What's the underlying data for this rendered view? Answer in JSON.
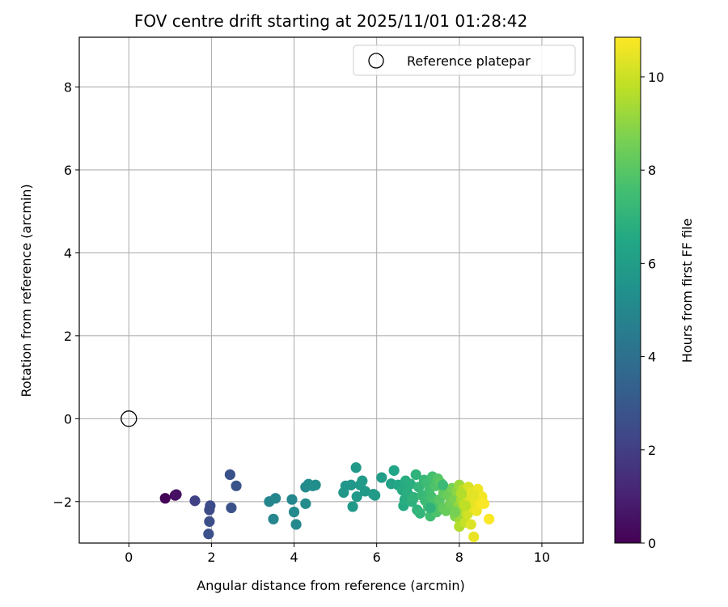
{
  "chart_data": {
    "type": "scatter",
    "title": "FOV centre drift starting at 2025/11/01 01:28:42",
    "xlabel": "Angular distance from reference (arcmin)",
    "ylabel": "Rotation from reference (arcmin)",
    "xlim": [
      -1.2,
      11.0
    ],
    "ylim": [
      -3.0,
      9.2
    ],
    "xticks": [
      0,
      2,
      4,
      6,
      8,
      10
    ],
    "yticks": [
      -2,
      0,
      2,
      4,
      6,
      8
    ],
    "xtick_labels": [
      "0",
      "2",
      "4",
      "6",
      "8",
      "10"
    ],
    "ytick_labels": [
      "−2",
      "0",
      "2",
      "4",
      "6",
      "8"
    ],
    "grid": true,
    "legend": {
      "placement": "top-right",
      "entries": [
        "Reference platepar"
      ]
    },
    "reference_point": {
      "name": "Reference platepar",
      "x": 0,
      "y": 0
    },
    "colorbar": {
      "label": "Hours from first FF file",
      "range": [
        0,
        10.85
      ],
      "ticks": [
        0,
        2,
        4,
        6,
        8,
        10
      ],
      "tick_labels": [
        "0",
        "2",
        "4",
        "6",
        "8",
        "10"
      ],
      "colormap": "viridis"
    },
    "series": [
      {
        "points": [
          {
            "x": 0.88,
            "y": -1.92,
            "h": 0.1
          },
          {
            "x": 1.12,
            "y": -1.85,
            "h": 0.4
          },
          {
            "x": 1.15,
            "y": -1.83,
            "h": 0.5
          },
          {
            "x": 1.6,
            "y": -1.98,
            "h": 2.1
          },
          {
            "x": 1.95,
            "y": -2.2,
            "h": 2.5
          },
          {
            "x": 1.97,
            "y": -2.1,
            "h": 2.5
          },
          {
            "x": 1.95,
            "y": -2.48,
            "h": 2.6
          },
          {
            "x": 1.93,
            "y": -2.78,
            "h": 2.7
          },
          {
            "x": 2.45,
            "y": -1.35,
            "h": 2.7
          },
          {
            "x": 2.48,
            "y": -2.15,
            "h": 2.7
          },
          {
            "x": 2.6,
            "y": -1.62,
            "h": 2.8
          },
          {
            "x": 3.4,
            "y": -2.0,
            "h": 4.9
          },
          {
            "x": 3.55,
            "y": -1.92,
            "h": 4.9
          },
          {
            "x": 3.5,
            "y": -2.42,
            "h": 5.0
          },
          {
            "x": 3.95,
            "y": -1.95,
            "h": 5.0
          },
          {
            "x": 4.0,
            "y": -2.25,
            "h": 5.1
          },
          {
            "x": 4.05,
            "y": -2.55,
            "h": 5.1
          },
          {
            "x": 4.28,
            "y": -1.65,
            "h": 5.1
          },
          {
            "x": 4.35,
            "y": -1.58,
            "h": 5.2
          },
          {
            "x": 4.28,
            "y": -2.05,
            "h": 5.2
          },
          {
            "x": 4.45,
            "y": -1.62,
            "h": 5.3
          },
          {
            "x": 4.52,
            "y": -1.6,
            "h": 5.3
          },
          {
            "x": 5.2,
            "y": -1.78,
            "h": 5.7
          },
          {
            "x": 5.25,
            "y": -1.62,
            "h": 5.7
          },
          {
            "x": 5.38,
            "y": -1.6,
            "h": 5.7
          },
          {
            "x": 5.42,
            "y": -2.12,
            "h": 5.8
          },
          {
            "x": 5.5,
            "y": -1.18,
            "h": 5.8
          },
          {
            "x": 5.52,
            "y": -1.88,
            "h": 5.8
          },
          {
            "x": 5.6,
            "y": -1.6,
            "h": 5.8
          },
          {
            "x": 5.65,
            "y": -1.5,
            "h": 5.9
          },
          {
            "x": 5.72,
            "y": -1.75,
            "h": 5.9
          },
          {
            "x": 5.92,
            "y": -1.82,
            "h": 5.9
          },
          {
            "x": 5.96,
            "y": -1.85,
            "h": 5.9
          },
          {
            "x": 6.12,
            "y": -1.42,
            "h": 6.0
          },
          {
            "x": 6.35,
            "y": -1.57,
            "h": 6.2
          },
          {
            "x": 6.42,
            "y": -1.25,
            "h": 6.3
          },
          {
            "x": 6.52,
            "y": -1.6,
            "h": 6.4
          },
          {
            "x": 6.62,
            "y": -1.72,
            "h": 6.6
          },
          {
            "x": 6.65,
            "y": -2.1,
            "h": 6.6
          },
          {
            "x": 6.7,
            "y": -1.5,
            "h": 6.7
          },
          {
            "x": 6.68,
            "y": -1.95,
            "h": 6.7
          },
          {
            "x": 6.75,
            "y": -1.8,
            "h": 6.8
          },
          {
            "x": 6.82,
            "y": -1.58,
            "h": 6.8
          },
          {
            "x": 6.85,
            "y": -2.0,
            "h": 6.9
          },
          {
            "x": 6.9,
            "y": -1.9,
            "h": 7.0
          },
          {
            "x": 6.95,
            "y": -1.35,
            "h": 7.0
          },
          {
            "x": 6.98,
            "y": -2.2,
            "h": 7.0
          },
          {
            "x": 7.02,
            "y": -1.65,
            "h": 7.1
          },
          {
            "x": 7.05,
            "y": -2.28,
            "h": 7.1
          },
          {
            "x": 7.1,
            "y": -1.85,
            "h": 7.2
          },
          {
            "x": 7.15,
            "y": -1.48,
            "h": 7.2
          },
          {
            "x": 7.18,
            "y": -1.98,
            "h": 7.3
          },
          {
            "x": 7.22,
            "y": -1.55,
            "h": 7.4
          },
          {
            "x": 7.25,
            "y": -2.12,
            "h": 7.4
          },
          {
            "x": 7.28,
            "y": -1.7,
            "h": 7.5
          },
          {
            "x": 7.3,
            "y": -2.35,
            "h": 7.5
          },
          {
            "x": 7.32,
            "y": -1.88,
            "h": 7.6
          },
          {
            "x": 7.35,
            "y": -1.4,
            "h": 7.6
          },
          {
            "x": 7.38,
            "y": -2.05,
            "h": 7.7
          },
          {
            "x": 7.42,
            "y": -1.62,
            "h": 7.8
          },
          {
            "x": 7.45,
            "y": -2.25,
            "h": 7.8
          },
          {
            "x": 7.48,
            "y": -1.45,
            "h": 7.9
          },
          {
            "x": 7.52,
            "y": -1.95,
            "h": 8.0
          },
          {
            "x": 7.55,
            "y": -1.55,
            "h": 8.1
          },
          {
            "x": 7.6,
            "y": -2.15,
            "h": 8.2
          },
          {
            "x": 7.62,
            "y": -1.78,
            "h": 8.2
          },
          {
            "x": 7.68,
            "y": -2.22,
            "h": 8.3
          },
          {
            "x": 7.72,
            "y": -1.85,
            "h": 8.4
          },
          {
            "x": 7.78,
            "y": -2.05,
            "h": 8.5
          },
          {
            "x": 7.82,
            "y": -1.68,
            "h": 8.6
          },
          {
            "x": 7.88,
            "y": -1.92,
            "h": 8.7
          },
          {
            "x": 7.9,
            "y": -2.35,
            "h": 8.8
          },
          {
            "x": 7.95,
            "y": -1.75,
            "h": 9.0
          },
          {
            "x": 7.98,
            "y": -2.1,
            "h": 9.1
          },
          {
            "x": 8.0,
            "y": -1.6,
            "h": 9.2
          },
          {
            "x": 8.02,
            "y": -2.45,
            "h": 9.3
          },
          {
            "x": 8.05,
            "y": -1.95,
            "h": 9.4
          },
          {
            "x": 8.08,
            "y": -2.2,
            "h": 9.5
          },
          {
            "x": 8.0,
            "y": -2.6,
            "h": 9.6
          },
          {
            "x": 8.1,
            "y": -1.7,
            "h": 9.7
          },
          {
            "x": 8.12,
            "y": -2.05,
            "h": 9.8
          },
          {
            "x": 8.15,
            "y": -2.5,
            "h": 9.9
          },
          {
            "x": 8.18,
            "y": -1.85,
            "h": 10.0
          },
          {
            "x": 8.2,
            "y": -2.3,
            "h": 10.1
          },
          {
            "x": 8.22,
            "y": -1.65,
            "h": 10.2
          },
          {
            "x": 8.25,
            "y": -2.0,
            "h": 10.3
          },
          {
            "x": 8.28,
            "y": -2.55,
            "h": 10.3
          },
          {
            "x": 8.3,
            "y": -1.78,
            "h": 10.4
          },
          {
            "x": 8.32,
            "y": -2.15,
            "h": 10.4
          },
          {
            "x": 8.35,
            "y": -2.85,
            "h": 10.5
          },
          {
            "x": 8.38,
            "y": -1.95,
            "h": 10.5
          },
          {
            "x": 8.42,
            "y": -2.22,
            "h": 10.6
          },
          {
            "x": 8.45,
            "y": -1.7,
            "h": 10.6
          },
          {
            "x": 8.5,
            "y": -2.05,
            "h": 10.7
          },
          {
            "x": 8.55,
            "y": -1.88,
            "h": 10.7
          },
          {
            "x": 8.6,
            "y": -2.05,
            "h": 10.8
          },
          {
            "x": 8.72,
            "y": -2.42,
            "h": 10.8
          },
          {
            "x": 7.3,
            "y": -2.15,
            "h": 7.0
          },
          {
            "x": 7.6,
            "y": -1.6,
            "h": 7.3
          },
          {
            "x": 7.9,
            "y": -2.25,
            "h": 8.6
          },
          {
            "x": 8.15,
            "y": -2.1,
            "h": 9.8
          },
          {
            "x": 8.35,
            "y": -1.85,
            "h": 10.4
          },
          {
            "x": 8.05,
            "y": -1.8,
            "h": 9.6
          }
        ]
      }
    ]
  }
}
